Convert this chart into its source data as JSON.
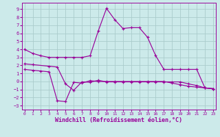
{
  "background_color": "#cceaea",
  "grid_color": "#aacccc",
  "line_color": "#990099",
  "xlabel": "Windchill (Refroidissement éolien,°C)",
  "xlabel_fontsize": 6.0,
  "xticks": [
    0,
    1,
    2,
    3,
    4,
    5,
    6,
    7,
    8,
    9,
    10,
    11,
    12,
    13,
    14,
    15,
    16,
    17,
    18,
    19,
    20,
    21,
    22,
    23
  ],
  "yticks": [
    -3,
    -2,
    -1,
    0,
    1,
    2,
    3,
    4,
    5,
    6,
    7,
    8,
    9
  ],
  "ylim": [
    -3.5,
    9.8
  ],
  "xlim": [
    -0.3,
    23.3
  ],
  "line1_x": [
    0,
    1,
    2,
    3,
    4,
    5,
    6,
    7,
    8,
    9,
    10,
    11,
    12,
    13,
    14,
    15,
    16,
    17,
    18,
    19,
    20,
    21,
    22,
    23
  ],
  "line1_y": [
    4.0,
    3.5,
    3.2,
    3.0,
    3.0,
    3.0,
    3.0,
    3.0,
    3.2,
    6.3,
    9.1,
    7.7,
    6.6,
    6.7,
    6.7,
    5.5,
    3.2,
    1.5,
    1.5,
    1.5,
    1.5,
    1.5,
    -0.8,
    -0.9
  ],
  "line2_x": [
    0,
    1,
    3,
    4,
    5,
    6,
    7,
    8,
    9,
    10,
    11,
    12,
    13,
    14,
    15,
    16,
    17,
    18,
    19,
    20,
    21,
    22,
    23
  ],
  "line2_y": [
    2.2,
    2.1,
    1.9,
    1.8,
    -0.3,
    -1.1,
    -0.05,
    -0.1,
    0.15,
    -0.05,
    -0.05,
    -0.05,
    -0.05,
    -0.05,
    -0.05,
    -0.05,
    -0.05,
    -0.05,
    -0.05,
    -0.3,
    -0.5,
    -0.8,
    -0.9
  ],
  "line3_x": [
    0,
    1,
    2,
    3,
    4,
    5,
    6,
    7,
    8,
    9,
    10,
    11,
    12,
    13,
    14,
    15,
    16,
    17,
    18,
    19,
    20,
    21,
    22,
    23
  ],
  "line3_y": [
    1.5,
    1.4,
    1.3,
    1.2,
    -2.4,
    -2.5,
    -0.1,
    -0.2,
    0.1,
    0.0,
    0.0,
    0.0,
    0.0,
    0.0,
    0.0,
    0.0,
    0.0,
    0.0,
    -0.2,
    -0.4,
    -0.6,
    -0.7,
    -0.8,
    -0.9
  ]
}
